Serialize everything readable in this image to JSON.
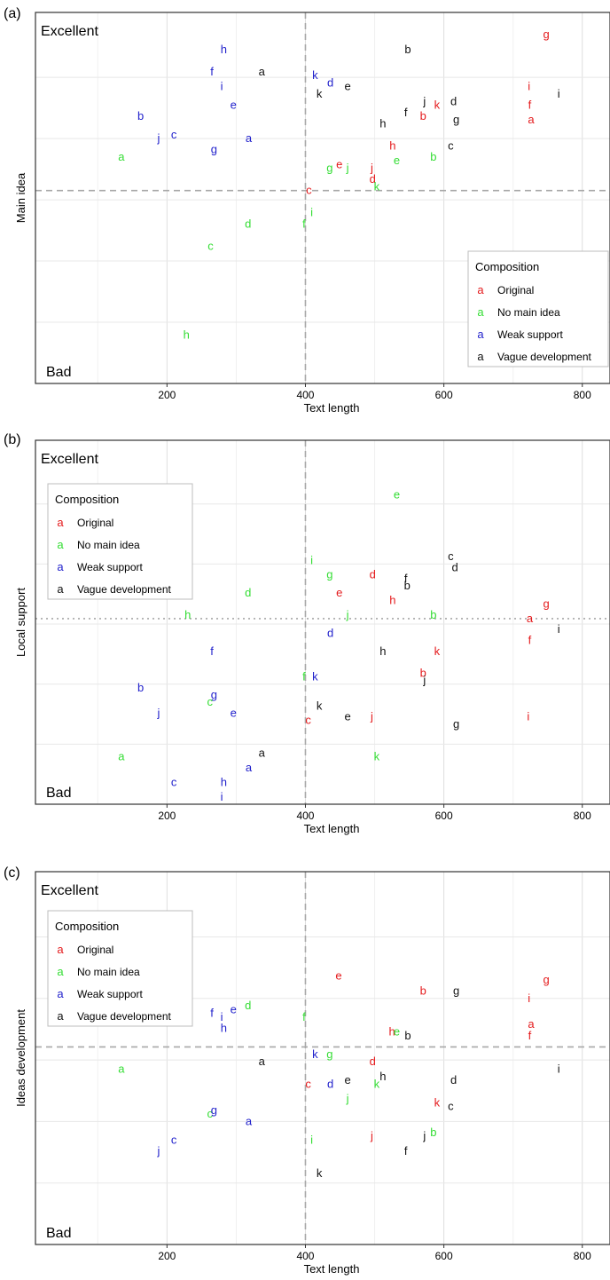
{
  "colors": {
    "Original": "#e41a1c",
    "No main idea": "#33dd33",
    "Weak support": "#2222cc",
    "Vague development": "#111111"
  },
  "chart_data": [
    {
      "type": "scatter",
      "panel_label": "(a)",
      "ylabel": "Main idea",
      "xlabel": "Text length",
      "corner_top": "Excellent",
      "corner_bottom": "Bad",
      "x_ticks": [
        "200",
        "400",
        "600",
        "800"
      ],
      "xlim": [
        10,
        840
      ],
      "ylim": [
        0,
        100
      ],
      "x_ref": 400,
      "y_ref": 52,
      "ref_style": "dashed",
      "legend": {
        "title": "Composition",
        "entries": [
          "Original",
          "No main idea",
          "Weak support",
          "Vague development"
        ],
        "placement": "bottom-right"
      },
      "series": [
        {
          "name": "Original",
          "points": [
            {
              "label": "g",
              "x": 748,
              "y": 94
            },
            {
              "label": "i",
              "x": 723,
              "y": 80
            },
            {
              "label": "f",
              "x": 724,
              "y": 75
            },
            {
              "label": "a",
              "x": 726,
              "y": 71
            },
            {
              "label": "k",
              "x": 590,
              "y": 75
            },
            {
              "label": "b",
              "x": 570,
              "y": 72
            },
            {
              "label": "h",
              "x": 526,
              "y": 64
            },
            {
              "label": "j",
              "x": 496,
              "y": 58
            },
            {
              "label": "e",
              "x": 449,
              "y": 59
            },
            {
              "label": "d",
              "x": 497,
              "y": 55
            },
            {
              "label": "c",
              "x": 405,
              "y": 52
            }
          ]
        },
        {
          "name": "No main idea",
          "points": [
            {
              "label": "a",
              "x": 134,
              "y": 61
            },
            {
              "label": "g",
              "x": 435,
              "y": 58
            },
            {
              "label": "j",
              "x": 461,
              "y": 58
            },
            {
              "label": "e",
              "x": 532,
              "y": 60
            },
            {
              "label": "b",
              "x": 585,
              "y": 61
            },
            {
              "label": "k",
              "x": 503,
              "y": 53
            },
            {
              "label": "i",
              "x": 409,
              "y": 46
            },
            {
              "label": "f",
              "x": 398,
              "y": 43
            },
            {
              "label": "d",
              "x": 317,
              "y": 43
            },
            {
              "label": "c",
              "x": 263,
              "y": 37
            },
            {
              "label": "h",
              "x": 228,
              "y": 13
            }
          ]
        },
        {
          "name": "Weak support",
          "points": [
            {
              "label": "h",
              "x": 282,
              "y": 90
            },
            {
              "label": "f",
              "x": 265,
              "y": 84
            },
            {
              "label": "k",
              "x": 414,
              "y": 83
            },
            {
              "label": "d",
              "x": 436,
              "y": 81
            },
            {
              "label": "i",
              "x": 279,
              "y": 80
            },
            {
              "label": "e",
              "x": 296,
              "y": 75
            },
            {
              "label": "b",
              "x": 162,
              "y": 72
            },
            {
              "label": "c",
              "x": 210,
              "y": 67
            },
            {
              "label": "a",
              "x": 318,
              "y": 66
            },
            {
              "label": "j",
              "x": 188,
              "y": 66
            },
            {
              "label": "g",
              "x": 268,
              "y": 63
            }
          ]
        },
        {
          "name": "Vague development",
          "points": [
            {
              "label": "b",
              "x": 548,
              "y": 90
            },
            {
              "label": "a",
              "x": 337,
              "y": 84
            },
            {
              "label": "e",
              "x": 461,
              "y": 80
            },
            {
              "label": "k",
              "x": 420,
              "y": 78
            },
            {
              "label": "j",
              "x": 572,
              "y": 76
            },
            {
              "label": "d",
              "x": 614,
              "y": 76
            },
            {
              "label": "f",
              "x": 545,
              "y": 73
            },
            {
              "label": "g",
              "x": 618,
              "y": 71
            },
            {
              "label": "h",
              "x": 512,
              "y": 70
            },
            {
              "label": "c",
              "x": 610,
              "y": 64
            },
            {
              "label": "i",
              "x": 766,
              "y": 78
            }
          ]
        }
      ]
    },
    {
      "type": "scatter",
      "panel_label": "(b)",
      "ylabel": "Local support",
      "xlabel": "Text length",
      "corner_top": "Excellent",
      "corner_bottom": "Bad",
      "x_ticks": [
        "200",
        "400",
        "600",
        "800"
      ],
      "xlim": [
        10,
        840
      ],
      "ylim": [
        0,
        100
      ],
      "x_ref": 400,
      "y_ref": 51,
      "ref_style": "dotted",
      "legend": {
        "title": "Composition",
        "entries": [
          "Original",
          "No main idea",
          "Weak support",
          "Vague development"
        ],
        "placement": "top-left"
      },
      "series": [
        {
          "name": "Original",
          "points": [
            {
              "label": "g",
              "x": 748,
              "y": 55
            },
            {
              "label": "a",
              "x": 724,
              "y": 51
            },
            {
              "label": "f",
              "x": 724,
              "y": 45
            },
            {
              "label": "d",
              "x": 497,
              "y": 63
            },
            {
              "label": "e",
              "x": 449,
              "y": 58
            },
            {
              "label": "h",
              "x": 526,
              "y": 56
            },
            {
              "label": "k",
              "x": 590,
              "y": 42
            },
            {
              "label": "b",
              "x": 570,
              "y": 36
            },
            {
              "label": "i",
              "x": 722,
              "y": 24
            },
            {
              "label": "j",
              "x": 496,
              "y": 24
            },
            {
              "label": "c",
              "x": 404,
              "y": 23
            }
          ]
        },
        {
          "name": "No main idea",
          "points": [
            {
              "label": "e",
              "x": 532,
              "y": 85
            },
            {
              "label": "i",
              "x": 409,
              "y": 67
            },
            {
              "label": "g",
              "x": 435,
              "y": 63
            },
            {
              "label": "d",
              "x": 317,
              "y": 58
            },
            {
              "label": "h",
              "x": 230,
              "y": 52
            },
            {
              "label": "j",
              "x": 461,
              "y": 52
            },
            {
              "label": "b",
              "x": 585,
              "y": 52
            },
            {
              "label": "f",
              "x": 398,
              "y": 35
            },
            {
              "label": "c",
              "x": 262,
              "y": 28
            },
            {
              "label": "a",
              "x": 134,
              "y": 13
            },
            {
              "label": "k",
              "x": 503,
              "y": 13
            }
          ]
        },
        {
          "name": "Weak support",
          "points": [
            {
              "label": "d",
              "x": 436,
              "y": 47
            },
            {
              "label": "f",
              "x": 265,
              "y": 42
            },
            {
              "label": "k",
              "x": 414,
              "y": 35
            },
            {
              "label": "b",
              "x": 162,
              "y": 32
            },
            {
              "label": "g",
              "x": 268,
              "y": 30
            },
            {
              "label": "j",
              "x": 188,
              "y": 25
            },
            {
              "label": "e",
              "x": 296,
              "y": 25
            },
            {
              "label": "a",
              "x": 318,
              "y": 10
            },
            {
              "label": "c",
              "x": 210,
              "y": 6
            },
            {
              "label": "h",
              "x": 282,
              "y": 6
            },
            {
              "label": "i",
              "x": 279,
              "y": 2
            }
          ]
        },
        {
          "name": "Vague development",
          "points": [
            {
              "label": "c",
              "x": 610,
              "y": 68
            },
            {
              "label": "d",
              "x": 616,
              "y": 65
            },
            {
              "label": "f",
              "x": 545,
              "y": 62
            },
            {
              "label": "b",
              "x": 547,
              "y": 60
            },
            {
              "label": "i",
              "x": 766,
              "y": 48
            },
            {
              "label": "h",
              "x": 512,
              "y": 42
            },
            {
              "label": "j",
              "x": 572,
              "y": 34
            },
            {
              "label": "k",
              "x": 420,
              "y": 27
            },
            {
              "label": "e",
              "x": 461,
              "y": 24
            },
            {
              "label": "g",
              "x": 618,
              "y": 22
            },
            {
              "label": "a",
              "x": 337,
              "y": 14
            }
          ]
        }
      ]
    },
    {
      "type": "scatter",
      "panel_label": "(c)",
      "ylabel": "Ideas development",
      "xlabel": "Text length",
      "corner_top": "Excellent",
      "corner_bottom": "Bad",
      "x_ticks": [
        "200",
        "400",
        "600",
        "800"
      ],
      "xlim": [
        10,
        840
      ],
      "ylim": [
        0,
        100
      ],
      "x_ref": 400,
      "y_ref": 53,
      "ref_style": "dashed",
      "legend": {
        "title": "Composition",
        "entries": [
          "Original",
          "No main idea",
          "Weak support",
          "Vague development"
        ],
        "placement": "top-left"
      },
      "series": [
        {
          "name": "Original",
          "points": [
            {
              "label": "e",
              "x": 448,
              "y": 72
            },
            {
              "label": "b",
              "x": 570,
              "y": 68
            },
            {
              "label": "g",
              "x": 748,
              "y": 71
            },
            {
              "label": "i",
              "x": 723,
              "y": 66
            },
            {
              "label": "a",
              "x": 726,
              "y": 59
            },
            {
              "label": "f",
              "x": 724,
              "y": 56
            },
            {
              "label": "h",
              "x": 525,
              "y": 57
            },
            {
              "label": "d",
              "x": 497,
              "y": 49
            },
            {
              "label": "c",
              "x": 404,
              "y": 43
            },
            {
              "label": "k",
              "x": 590,
              "y": 38
            },
            {
              "label": "j",
              "x": 496,
              "y": 29
            }
          ]
        },
        {
          "name": "No main idea",
          "points": [
            {
              "label": "h",
              "x": 230,
              "y": 79
            },
            {
              "label": "d",
              "x": 317,
              "y": 64
            },
            {
              "label": "f",
              "x": 398,
              "y": 61
            },
            {
              "label": "e",
              "x": 532,
              "y": 57
            },
            {
              "label": "g",
              "x": 435,
              "y": 51
            },
            {
              "label": "a",
              "x": 134,
              "y": 47
            },
            {
              "label": "k",
              "x": 503,
              "y": 43
            },
            {
              "label": "j",
              "x": 461,
              "y": 39
            },
            {
              "label": "c",
              "x": 262,
              "y": 35
            },
            {
              "label": "b",
              "x": 585,
              "y": 30
            },
            {
              "label": "i",
              "x": 409,
              "y": 28
            }
          ]
        },
        {
          "name": "Weak support",
          "points": [
            {
              "label": "e",
              "x": 296,
              "y": 63
            },
            {
              "label": "f",
              "x": 265,
              "y": 62
            },
            {
              "label": "i",
              "x": 279,
              "y": 61
            },
            {
              "label": "h",
              "x": 282,
              "y": 58
            },
            {
              "label": "k",
              "x": 414,
              "y": 51
            },
            {
              "label": "d",
              "x": 436,
              "y": 43
            },
            {
              "label": "g",
              "x": 268,
              "y": 36
            },
            {
              "label": "a",
              "x": 318,
              "y": 33
            },
            {
              "label": "c",
              "x": 210,
              "y": 28
            },
            {
              "label": "j",
              "x": 188,
              "y": 25
            }
          ]
        },
        {
          "name": "Vague development",
          "points": [
            {
              "label": "g",
              "x": 618,
              "y": 68
            },
            {
              "label": "b",
              "x": 548,
              "y": 56
            },
            {
              "label": "a",
              "x": 337,
              "y": 49
            },
            {
              "label": "h",
              "x": 512,
              "y": 45
            },
            {
              "label": "e",
              "x": 461,
              "y": 44
            },
            {
              "label": "d",
              "x": 614,
              "y": 44
            },
            {
              "label": "i",
              "x": 766,
              "y": 47
            },
            {
              "label": "c",
              "x": 610,
              "y": 37
            },
            {
              "label": "j",
              "x": 572,
              "y": 29
            },
            {
              "label": "f",
              "x": 545,
              "y": 25
            },
            {
              "label": "k",
              "x": 420,
              "y": 19
            }
          ]
        }
      ]
    }
  ]
}
